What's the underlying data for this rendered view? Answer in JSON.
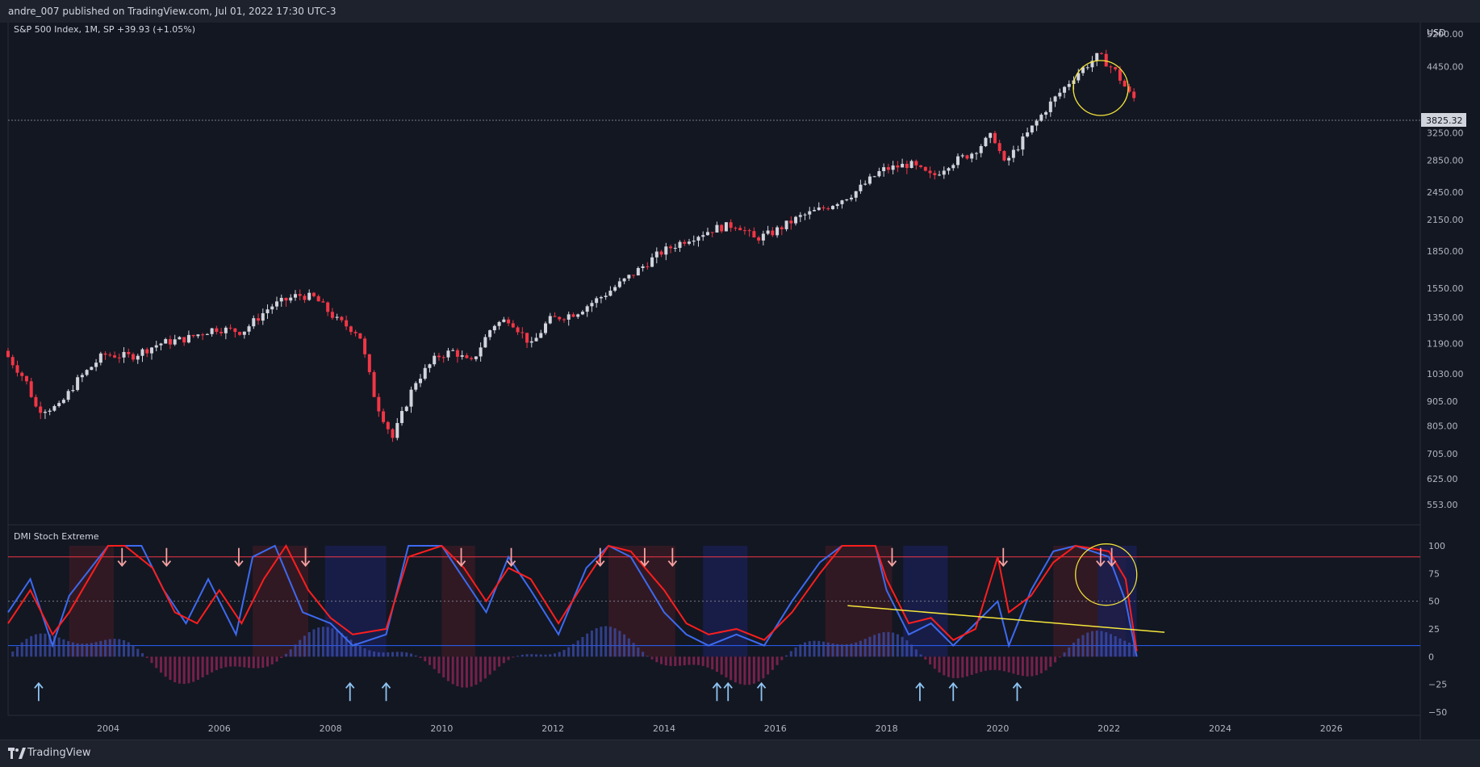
{
  "header": {
    "publish_line": "andre_007 published on TradingView.com, Jul 01, 2022 17:30 UTC-3"
  },
  "main_legend": "S&P 500 Index, 1M, SP  +39.93 (+1.05%)",
  "indicator_legend": "DMI Stoch Extreme",
  "price_axis": {
    "currency": "USD",
    "ticks": [
      "5200.00",
      "4450.00",
      "3250.00",
      "2850.00",
      "2450.00",
      "2150.00",
      "1850.00",
      "1550.00",
      "1350.00",
      "1190.00",
      "1030.00",
      "905.00",
      "805.00",
      "705.00",
      "625.00",
      "553.00"
    ],
    "last_price_label": "3825.32"
  },
  "indicator_axis": {
    "ticks": [
      "100",
      "75",
      "50",
      "25",
      "0",
      "−25",
      "−50"
    ]
  },
  "time_axis": {
    "ticks": [
      "2004",
      "2006",
      "2008",
      "2010",
      "2012",
      "2014",
      "2016",
      "2018",
      "2020",
      "2022",
      "2024",
      "2026"
    ]
  },
  "footer": {
    "brand": "TradingView"
  },
  "colors": {
    "bg": "#131722",
    "up": "#d1d4dc",
    "down": "#f23645",
    "stoch_blue": "#3d6af0",
    "stoch_red": "#ff1e1e",
    "trend": "#f5e63b",
    "arrow_down": "#f5a3a3",
    "arrow_up": "#8fc4f2"
  },
  "chart_data": [
    {
      "type": "candlestick",
      "title": "S&P 500 Index, 1M, SP",
      "y_scale": "log",
      "ylim": [
        553,
        5200
      ],
      "xlim": [
        2002.2,
        2027.6
      ],
      "x": [
        2002.2,
        2002.6,
        2002.8,
        2003.2,
        2003.5,
        2004.0,
        2004.5,
        2005.0,
        2005.5,
        2006.0,
        2006.5,
        2007.0,
        2007.5,
        2007.8,
        2008.2,
        2008.6,
        2008.9,
        2009.2,
        2009.6,
        2010.0,
        2010.3,
        2010.6,
        2011.0,
        2011.3,
        2011.7,
        2012.0,
        2012.5,
        2013.0,
        2013.5,
        2014.0,
        2014.5,
        2015.0,
        2015.4,
        2015.7,
        2016.0,
        2016.5,
        2017.0,
        2017.5,
        2018.0,
        2018.5,
        2018.9,
        2019.2,
        2019.6,
        2020.0,
        2020.2,
        2020.5,
        2021.0,
        2021.5,
        2021.9,
        2022.2,
        2022.5
      ],
      "y": [
        1150,
        1000,
        870,
        880,
        990,
        1130,
        1120,
        1190,
        1220,
        1280,
        1260,
        1420,
        1500,
        1480,
        1330,
        1250,
        900,
        760,
        990,
        1120,
        1150,
        1080,
        1300,
        1340,
        1180,
        1330,
        1380,
        1500,
        1650,
        1830,
        1960,
        2060,
        2100,
        1960,
        2010,
        2170,
        2280,
        2440,
        2720,
        2800,
        2630,
        2800,
        2940,
        3220,
        2800,
        3100,
        3700,
        4300,
        4700,
        4350,
        3825
      ]
    },
    {
      "type": "line",
      "title": "DMI Stoch Extreme",
      "ylim": [
        -50,
        100
      ],
      "levels": [
        90,
        50,
        10
      ],
      "xlim": [
        2002.2,
        2027.6
      ],
      "series": [
        {
          "name": "stoch",
          "color": "#3d6af0",
          "x": [
            2002.2,
            2002.6,
            2003.0,
            2003.3,
            2004.0,
            2004.3,
            2004.6,
            2005.0,
            2005.4,
            2005.8,
            2006.3,
            2006.6,
            2007.0,
            2007.5,
            2008.0,
            2008.4,
            2009.0,
            2009.4,
            2010.0,
            2010.4,
            2010.8,
            2011.2,
            2011.6,
            2012.1,
            2012.6,
            2013.0,
            2013.4,
            2014.0,
            2014.4,
            2014.8,
            2015.3,
            2015.8,
            2016.3,
            2016.8,
            2017.2,
            2017.8,
            2018.0,
            2018.4,
            2018.8,
            2019.2,
            2019.6,
            2020.0,
            2020.2,
            2020.6,
            2021.0,
            2021.4,
            2022.0,
            2022.3,
            2022.5
          ],
          "values": [
            40,
            70,
            10,
            55,
            100,
            100,
            100,
            60,
            30,
            70,
            20,
            90,
            100,
            40,
            30,
            10,
            20,
            100,
            100,
            70,
            40,
            90,
            60,
            20,
            80,
            100,
            90,
            40,
            20,
            10,
            20,
            10,
            50,
            85,
            100,
            100,
            60,
            20,
            30,
            10,
            30,
            50,
            10,
            60,
            95,
            100,
            90,
            50,
            0
          ]
        },
        {
          "name": "signal",
          "color": "#ff1e1e",
          "x": [
            2002.2,
            2002.6,
            2003.0,
            2003.3,
            2004.0,
            2004.3,
            2004.8,
            2005.2,
            2005.6,
            2006.0,
            2006.4,
            2006.8,
            2007.2,
            2007.6,
            2008.0,
            2008.4,
            2009.0,
            2009.4,
            2010.0,
            2010.4,
            2010.8,
            2011.2,
            2011.6,
            2012.1,
            2012.6,
            2013.0,
            2013.4,
            2014.0,
            2014.4,
            2014.8,
            2015.3,
            2015.8,
            2016.3,
            2016.8,
            2017.2,
            2017.8,
            2018.0,
            2018.4,
            2018.8,
            2019.2,
            2019.6,
            2020.0,
            2020.2,
            2020.6,
            2021.0,
            2021.4,
            2022.0,
            2022.3,
            2022.5
          ],
          "values": [
            30,
            60,
            20,
            40,
            100,
            100,
            80,
            40,
            30,
            60,
            30,
            70,
            100,
            60,
            35,
            20,
            25,
            90,
            100,
            80,
            50,
            80,
            70,
            30,
            70,
            100,
            95,
            60,
            30,
            20,
            25,
            15,
            40,
            75,
            100,
            100,
            70,
            30,
            35,
            15,
            25,
            90,
            40,
            55,
            85,
            100,
            95,
            70,
            5
          ]
        }
      ]
    }
  ]
}
